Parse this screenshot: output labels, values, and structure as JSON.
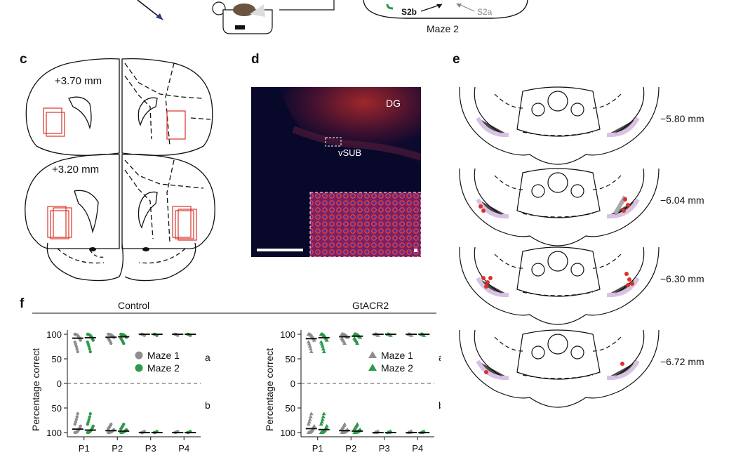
{
  "top": {
    "maze_label": "Maze 2",
    "s2b": "S2b",
    "s2a": "S2a"
  },
  "panels": {
    "c": "c",
    "d": "d",
    "e": "e",
    "f": "f"
  },
  "panel_c": {
    "coord_top": "+3.70 mm",
    "coord_bottom": "+3.20 mm"
  },
  "panel_d": {
    "label_dg": "DG",
    "label_vsub": "vSUB"
  },
  "panel_e": {
    "levels": [
      "−5.80 mm",
      "−6.04 mm",
      "−6.30 mm",
      "−6.72 mm"
    ]
  },
  "panel_f": {
    "group_control": "Control",
    "group_gtacr2": "GtACR2"
  },
  "colors": {
    "maze1": "#8e8e8e",
    "maze2": "#2e9a4a",
    "outline_red": "#d9322a",
    "fluor_red": "#c8302a",
    "fluor_blue": "#1a2a8a"
  },
  "chart_data": [
    {
      "type": "scatter",
      "title": "Control",
      "ylabel": "Percentage correct",
      "categories": [
        "P1",
        "P2",
        "P3",
        "P4"
      ],
      "yticks_top": [
        "100",
        "50",
        "0"
      ],
      "yticks_bottom": [
        "50",
        "100"
      ],
      "ylim_top": [
        0,
        100
      ],
      "ylim_bottom": [
        0,
        100
      ],
      "legend": [
        {
          "name": "Maze 1",
          "marker": "circle",
          "color": "#8e8e8e"
        },
        {
          "name": "Maze 2",
          "marker": "circle",
          "color": "#2e9a4a"
        }
      ],
      "stat_top": "a",
      "stat_bottom": "b",
      "series_top": [
        {
          "name": "Maze 1",
          "medians": [
            92,
            94,
            100,
            100
          ]
        },
        {
          "name": "Maze 2",
          "medians": [
            93,
            95,
            100,
            100
          ]
        }
      ],
      "series_bottom": [
        {
          "name": "Maze 1",
          "medians": [
            93,
            96,
            100,
            100
          ]
        },
        {
          "name": "Maze 2",
          "medians": [
            95,
            97,
            100,
            100
          ]
        }
      ]
    },
    {
      "type": "scatter",
      "title": "GtACR2",
      "ylabel": "Percentage correct",
      "categories": [
        "P1",
        "P2",
        "P3",
        "P4"
      ],
      "yticks_top": [
        "100",
        "50",
        "0"
      ],
      "yticks_bottom": [
        "50",
        "100"
      ],
      "ylim_top": [
        0,
        100
      ],
      "ylim_bottom": [
        0,
        100
      ],
      "legend": [
        {
          "name": "Maze 1",
          "marker": "triangle",
          "color": "#8e8e8e"
        },
        {
          "name": "Maze 2",
          "marker": "triangle",
          "color": "#2e9a4a"
        }
      ],
      "stat_top": "a",
      "stat_bottom": "b",
      "series_top": [
        {
          "name": "Maze 1",
          "medians": [
            91,
            95,
            100,
            100
          ]
        },
        {
          "name": "Maze 2",
          "medians": [
            93,
            96,
            100,
            100
          ]
        }
      ],
      "series_bottom": [
        {
          "name": "Maze 1",
          "medians": [
            92,
            96,
            100,
            100
          ]
        },
        {
          "name": "Maze 2",
          "medians": [
            94,
            97,
            100,
            100
          ]
        }
      ]
    }
  ]
}
